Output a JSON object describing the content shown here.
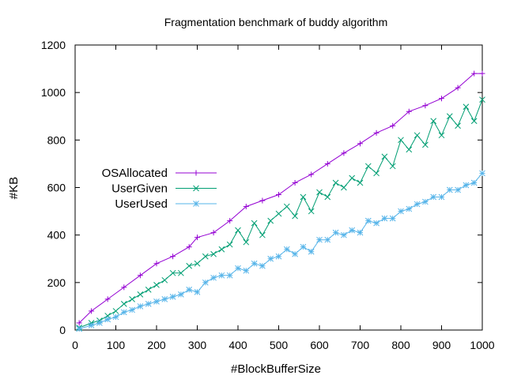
{
  "chart_data": {
    "type": "line",
    "title": "Fragmentation benchmark of buddy algorithm",
    "xlabel": "#BlockBufferSize",
    "ylabel": "#KB",
    "xlim": [
      0,
      1000
    ],
    "ylim": [
      0,
      1200
    ],
    "xticks": [
      0,
      100,
      200,
      300,
      400,
      500,
      600,
      700,
      800,
      900,
      1000
    ],
    "yticks": [
      0,
      200,
      400,
      600,
      800,
      1000,
      1200
    ],
    "xtick_labels": [
      "0",
      "100",
      "200",
      "300",
      "400",
      "500",
      "600",
      "700",
      "800",
      "900",
      "1000"
    ],
    "ytick_labels": [
      "0",
      "200",
      "400",
      "600",
      "800",
      "1000",
      "1200"
    ],
    "grid": false,
    "legend_position": "left-middle",
    "series": [
      {
        "name": "OSAllocated",
        "color": "#9400d3",
        "marker": "plus",
        "x": [
          10,
          40,
          80,
          120,
          160,
          200,
          240,
          280,
          300,
          340,
          380,
          420,
          460,
          500,
          540,
          580,
          620,
          660,
          700,
          740,
          780,
          820,
          860,
          900,
          940,
          980,
          1000
        ],
        "y": [
          30,
          80,
          130,
          180,
          230,
          280,
          310,
          350,
          390,
          410,
          460,
          520,
          545,
          570,
          620,
          655,
          700,
          745,
          785,
          830,
          860,
          920,
          945,
          975,
          1020,
          1080,
          1080
        ]
      },
      {
        "name": "UserGiven",
        "color": "#009e73",
        "marker": "x",
        "x": [
          10,
          40,
          60,
          80,
          100,
          120,
          140,
          160,
          180,
          200,
          220,
          240,
          260,
          280,
          300,
          320,
          340,
          360,
          380,
          400,
          420,
          440,
          460,
          480,
          500,
          520,
          540,
          560,
          580,
          600,
          620,
          640,
          660,
          680,
          700,
          720,
          740,
          760,
          780,
          800,
          820,
          840,
          860,
          880,
          900,
          920,
          940,
          960,
          980,
          1000
        ],
        "y": [
          10,
          30,
          40,
          60,
          80,
          110,
          130,
          150,
          170,
          190,
          210,
          240,
          240,
          270,
          280,
          310,
          320,
          340,
          360,
          420,
          370,
          450,
          400,
          460,
          490,
          520,
          480,
          560,
          500,
          580,
          560,
          620,
          600,
          640,
          620,
          690,
          660,
          730,
          690,
          800,
          760,
          820,
          780,
          880,
          820,
          900,
          860,
          940,
          880,
          970
        ]
      },
      {
        "name": "UserUsed",
        "color": "#56b4e9",
        "marker": "star",
        "x": [
          10,
          40,
          60,
          80,
          100,
          120,
          140,
          160,
          180,
          200,
          220,
          240,
          260,
          280,
          300,
          320,
          340,
          360,
          380,
          400,
          420,
          440,
          460,
          480,
          500,
          520,
          540,
          560,
          580,
          600,
          620,
          640,
          660,
          680,
          700,
          720,
          740,
          760,
          780,
          800,
          820,
          840,
          860,
          880,
          900,
          920,
          940,
          960,
          980,
          1000
        ],
        "y": [
          5,
          20,
          30,
          45,
          55,
          75,
          85,
          100,
          110,
          120,
          130,
          140,
          150,
          170,
          160,
          200,
          220,
          230,
          230,
          260,
          250,
          280,
          270,
          300,
          310,
          340,
          320,
          350,
          330,
          380,
          380,
          410,
          400,
          420,
          410,
          460,
          450,
          470,
          470,
          500,
          510,
          530,
          540,
          560,
          560,
          590,
          590,
          610,
          620,
          660
        ]
      }
    ]
  }
}
